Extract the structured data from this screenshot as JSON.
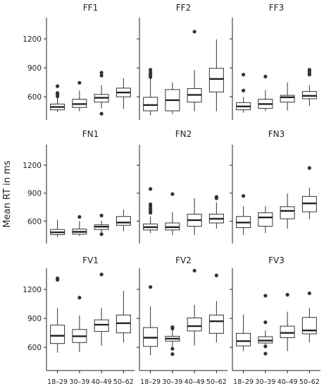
{
  "chart_data": {
    "type": "boxplot",
    "ylabel": "Mean RT in ms",
    "categories": [
      "18–29",
      "30–39",
      "40–49",
      "50–62"
    ],
    "y_ticks": [
      600,
      900,
      1200
    ],
    "ylim": [
      360,
      1420
    ],
    "panels": [
      {
        "title": "FF1",
        "boxes": [
          {
            "min": 440,
            "q1": 465,
            "median": 495,
            "q3": 525,
            "max": 590,
            "outliers": [
              605,
              625,
              640,
              710
            ]
          },
          {
            "min": 450,
            "q1": 490,
            "median": 525,
            "q3": 575,
            "max": 665,
            "outliers": [
              745
            ]
          },
          {
            "min": 480,
            "q1": 545,
            "median": 590,
            "q3": 625,
            "max": 720,
            "outliers": [
              425,
              820,
              850
            ]
          },
          {
            "min": 475,
            "q1": 600,
            "median": 645,
            "q3": 690,
            "max": 790,
            "outliers": []
          }
        ]
      },
      {
        "title": "FF2",
        "boxes": [
          {
            "min": 410,
            "q1": 455,
            "median": 515,
            "q3": 595,
            "max": 790,
            "outliers": [
              805,
              830,
              855,
              880
            ]
          },
          {
            "min": 420,
            "q1": 455,
            "median": 565,
            "q3": 675,
            "max": 750,
            "outliers": []
          },
          {
            "min": 450,
            "q1": 545,
            "median": 620,
            "q3": 685,
            "max": 880,
            "outliers": [
              1275
            ]
          },
          {
            "min": 450,
            "q1": 650,
            "median": 785,
            "q3": 895,
            "max": 1195,
            "outliers": []
          }
        ]
      },
      {
        "title": "FF3",
        "boxes": [
          {
            "min": 435,
            "q1": 465,
            "median": 500,
            "q3": 540,
            "max": 600,
            "outliers": [
              665,
              830
            ]
          },
          {
            "min": 450,
            "q1": 480,
            "median": 525,
            "q3": 575,
            "max": 670,
            "outliers": [
              810
            ]
          },
          {
            "min": 460,
            "q1": 545,
            "median": 595,
            "q3": 615,
            "max": 750,
            "outliers": []
          },
          {
            "min": 505,
            "q1": 580,
            "median": 610,
            "q3": 655,
            "max": 720,
            "outliers": [
              830,
              845,
              865,
              880
            ]
          }
        ]
      },
      {
        "title": "FN1",
        "boxes": [
          {
            "min": 430,
            "q1": 455,
            "median": 480,
            "q3": 510,
            "max": 615,
            "outliers": []
          },
          {
            "min": 440,
            "q1": 460,
            "median": 485,
            "q3": 515,
            "max": 600,
            "outliers": [
              645
            ]
          },
          {
            "min": 470,
            "q1": 510,
            "median": 540,
            "q3": 560,
            "max": 605,
            "outliers": [
              460,
              660
            ]
          },
          {
            "min": 490,
            "q1": 555,
            "median": 585,
            "q3": 650,
            "max": 725,
            "outliers": []
          }
        ]
      },
      {
        "title": "FN2",
        "boxes": [
          {
            "min": 470,
            "q1": 505,
            "median": 535,
            "q3": 570,
            "max": 650,
            "outliers": [
              690,
              710,
              735,
              760,
              780,
              945
            ]
          },
          {
            "min": 450,
            "q1": 505,
            "median": 535,
            "q3": 580,
            "max": 695,
            "outliers": [
              890
            ]
          },
          {
            "min": 450,
            "q1": 545,
            "median": 610,
            "q3": 675,
            "max": 845,
            "outliers": []
          },
          {
            "min": 520,
            "q1": 580,
            "median": 625,
            "q3": 675,
            "max": 800,
            "outliers": [
              845,
              860
            ]
          }
        ]
      },
      {
        "title": "FN3",
        "boxes": [
          {
            "min": 450,
            "q1": 530,
            "median": 585,
            "q3": 650,
            "max": 760,
            "outliers": [
              870
            ]
          },
          {
            "min": 470,
            "q1": 545,
            "median": 640,
            "q3": 690,
            "max": 760,
            "outliers": []
          },
          {
            "min": 520,
            "q1": 625,
            "median": 710,
            "q3": 755,
            "max": 895,
            "outliers": []
          },
          {
            "min": 620,
            "q1": 700,
            "median": 790,
            "q3": 865,
            "max": 960,
            "outliers": [
              1170
            ]
          }
        ]
      },
      {
        "title": "FV1",
        "boxes": [
          {
            "min": 545,
            "q1": 640,
            "median": 720,
            "q3": 830,
            "max": 1005,
            "outliers": [
              1300,
              1315
            ]
          },
          {
            "min": 550,
            "q1": 650,
            "median": 715,
            "q3": 785,
            "max": 930,
            "outliers": [
              1115
            ]
          },
          {
            "min": 615,
            "q1": 765,
            "median": 835,
            "q3": 885,
            "max": 1010,
            "outliers": [
              1355
            ]
          },
          {
            "min": 650,
            "q1": 750,
            "median": 850,
            "q3": 935,
            "max": 1185,
            "outliers": []
          }
        ]
      },
      {
        "title": "FV2",
        "boxes": [
          {
            "min": 520,
            "q1": 610,
            "median": 700,
            "q3": 805,
            "max": 1025,
            "outliers": [
              1225
            ]
          },
          {
            "min": 570,
            "q1": 665,
            "median": 690,
            "q3": 715,
            "max": 775,
            "outliers": [
              530,
              585,
              795,
              810
            ]
          },
          {
            "min": 620,
            "q1": 770,
            "median": 820,
            "q3": 905,
            "max": 1040,
            "outliers": [
              1395
            ]
          },
          {
            "min": 650,
            "q1": 745,
            "median": 870,
            "q3": 935,
            "max": 1080,
            "outliers": [
              1345
            ]
          }
        ]
      },
      {
        "title": "FV3",
        "boxes": [
          {
            "min": 560,
            "q1": 615,
            "median": 665,
            "q3": 745,
            "max": 940,
            "outliers": []
          },
          {
            "min": 600,
            "q1": 645,
            "median": 670,
            "q3": 710,
            "max": 775,
            "outliers": [
              535,
              610,
              860,
              1135
            ]
          },
          {
            "min": 560,
            "q1": 700,
            "median": 750,
            "q3": 820,
            "max": 970,
            "outliers": [
              1145
            ]
          },
          {
            "min": 650,
            "q1": 740,
            "median": 775,
            "q3": 910,
            "max": 1010,
            "outliers": [
              1160
            ]
          }
        ]
      }
    ],
    "grid": false,
    "colors": {
      "box_fill": "#ffffff",
      "stroke": "#333333",
      "axis": "#222222"
    }
  }
}
